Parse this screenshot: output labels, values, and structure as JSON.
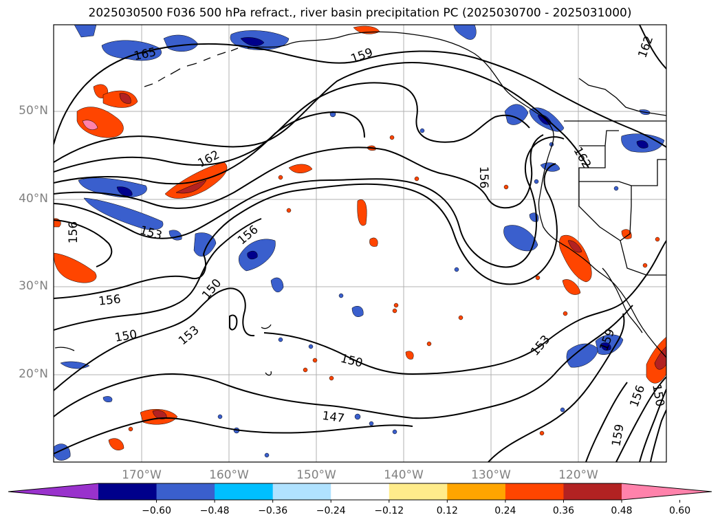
{
  "title": "2025030500 F036 500 hPa refract., river basin precipitation PC (2025030700 - 2025031000)",
  "lat_labels": [
    "50°N",
    "40°N",
    "30°N",
    "20°N"
  ],
  "lon_labels": [
    "170°W",
    "160°W",
    "150°W",
    "140°W",
    "130°W",
    "120°W"
  ],
  "contour_labels": [
    "165",
    "159",
    "162",
    "162",
    "156",
    "153",
    "156",
    "162",
    "156",
    "150",
    "156",
    "153",
    "150",
    "150",
    "147",
    "153",
    "159",
    "156",
    "150",
    "159"
  ],
  "colorbar": {
    "colors": [
      "#9932CC",
      "#00008B",
      "#3A5FCD",
      "#00BFFF",
      "#B0E2FF",
      "#FFFFFF",
      "#FFEC8B",
      "#FFA500",
      "#FF4500",
      "#B22222",
      "#FF82AB"
    ],
    "tick_labels": [
      "−0.60",
      "−0.48",
      "−0.36",
      "−0.24",
      "−0.12",
      "0.12",
      "0.24",
      "0.36",
      "0.48",
      "0.60"
    ]
  }
}
